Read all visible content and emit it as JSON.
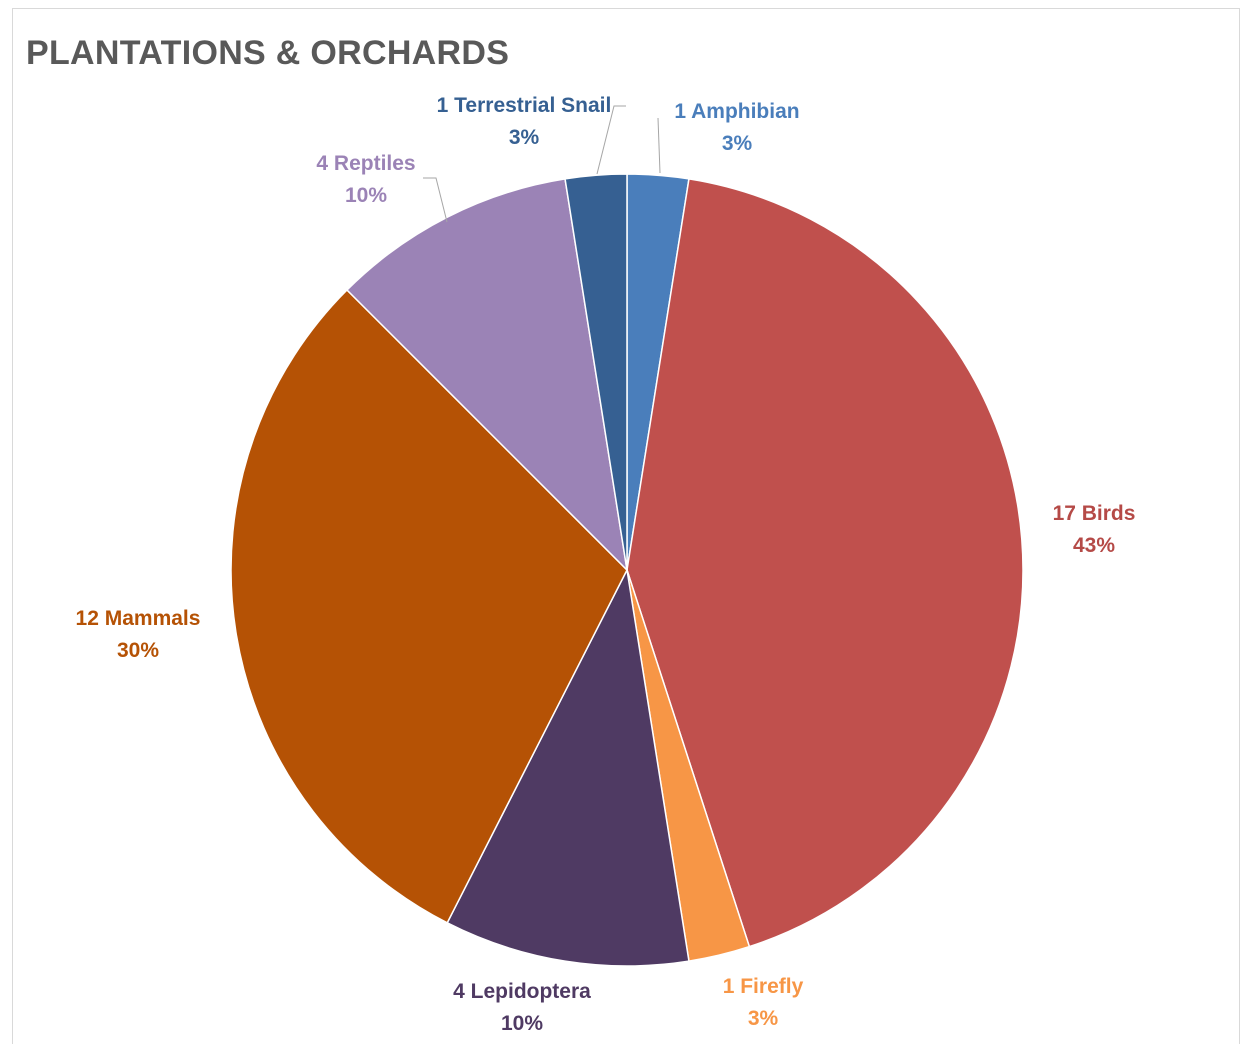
{
  "chart_data": {
    "type": "pie",
    "title": "PLANTATIONS & ORCHARDS",
    "slices": [
      {
        "label": "1 Amphibian",
        "value": 1,
        "percent": "3%",
        "color": "#4a7ebb",
        "label_color": "#4a7ebb"
      },
      {
        "label": "17 Birds",
        "value": 17,
        "percent": "43%",
        "color": "#c0504d",
        "label_color": "#b54a47"
      },
      {
        "label": "1 Firefly",
        "value": 1,
        "percent": "3%",
        "color": "#f79646",
        "label_color": "#f79646"
      },
      {
        "label": "4 Lepidoptera",
        "value": 4,
        "percent": "10%",
        "color": "#4f3a63",
        "label_color": "#4f3a63"
      },
      {
        "label": "12 Mammals",
        "value": 12,
        "percent": "30%",
        "color": "#b55205",
        "label_color": "#b55205"
      },
      {
        "label": "4 Reptiles",
        "value": 4,
        "percent": "10%",
        "color": "#9b83b6",
        "label_color": "#9b83b6"
      },
      {
        "label": "1 Terrestrial Snail",
        "value": 1,
        "percent": "3%",
        "color": "#366092",
        "label_color": "#366092"
      }
    ],
    "legend": "none",
    "data_labels": "category value and percentage"
  }
}
